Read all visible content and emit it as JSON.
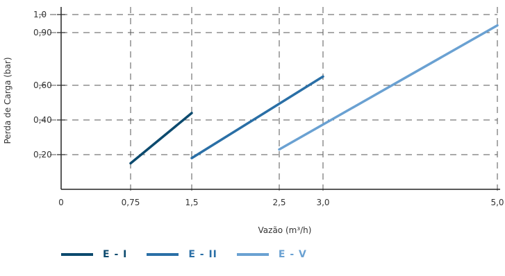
{
  "chart_data": {
    "type": "line",
    "xlabel": "Vazão (m³/h)",
    "ylabel": "Perda de Carga (bar)",
    "xlim": [
      0,
      5.0
    ],
    "ylim": [
      0,
      1.0
    ],
    "x_ticks": [
      {
        "value": 0,
        "label": "0"
      },
      {
        "value": 0.75,
        "label": "0,75"
      },
      {
        "value": 1.5,
        "label": "1,5"
      },
      {
        "value": 2.5,
        "label": "2,5"
      },
      {
        "value": 3.0,
        "label": "3,0"
      },
      {
        "value": 5.0,
        "label": "5,0"
      }
    ],
    "y_ticks": [
      {
        "value": 0.2,
        "label": "0,20"
      },
      {
        "value": 0.4,
        "label": "0,40"
      },
      {
        "value": 0.6,
        "label": "0,60"
      },
      {
        "value": 0.9,
        "label": "0,90"
      },
      {
        "value": 1.0,
        "label": "1,0"
      }
    ],
    "grid": true,
    "legend_position": "bottom-left",
    "series": [
      {
        "name": "E - I",
        "color": "#0c4a6e",
        "x": [
          0.75,
          1.5
        ],
        "y": [
          0.15,
          0.44
        ]
      },
      {
        "name": "E - II",
        "color": "#2a6fa6",
        "x": [
          1.5,
          3.0
        ],
        "y": [
          0.18,
          0.65
        ]
      },
      {
        "name": "E - V",
        "color": "#6aa1d2",
        "x": [
          2.5,
          5.0
        ],
        "y": [
          0.23,
          0.94
        ]
      }
    ]
  }
}
